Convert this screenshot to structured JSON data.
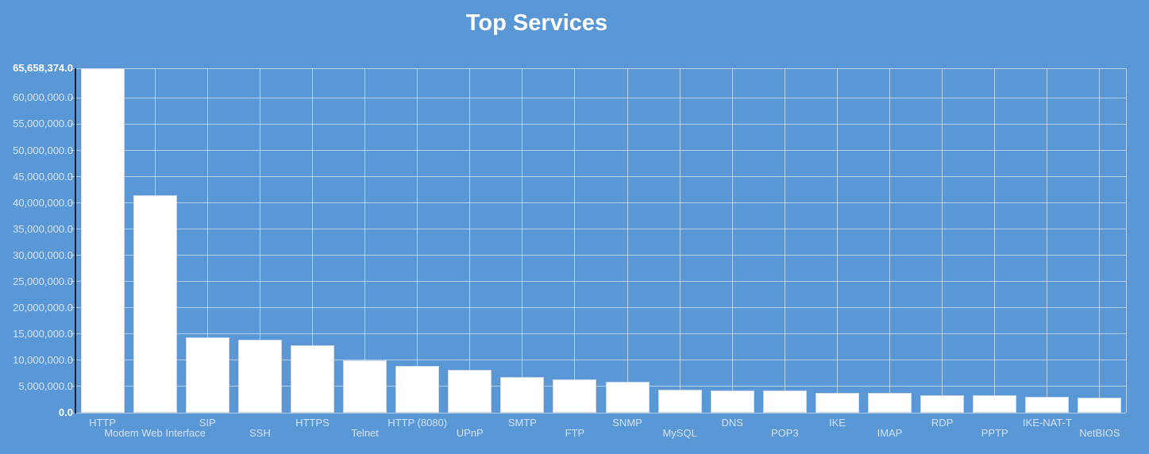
{
  "chart_data": {
    "type": "bar",
    "title": "Top Services",
    "xlabel": "",
    "ylabel": "",
    "grid": true,
    "legend": "none",
    "ylim": [
      0,
      65658374
    ],
    "categories": [
      "HTTP",
      "Modem Web Interface",
      "SIP",
      "SSH",
      "HTTPS",
      "Telnet",
      "HTTP (8080)",
      "UPnP",
      "SMTP",
      "FTP",
      "SNMP",
      "MySQL",
      "DNS",
      "POP3",
      "IKE",
      "IMAP",
      "RDP",
      "PPTP",
      "IKE-NAT-T",
      "NetBIOS"
    ],
    "values": [
      65658374,
      41400000,
      14440000,
      13890000,
      12820000,
      9970000,
      8900000,
      8190000,
      6880000,
      6360000,
      5900000,
      4330000,
      4280000,
      4250000,
      3830000,
      3720000,
      3370000,
      3310000,
      2960000,
      2910000
    ],
    "y_axis_ticks": [
      {
        "value": 0,
        "label": "0.0",
        "bold": true
      },
      {
        "value": 5000000,
        "label": "5,000,000.0",
        "bold": false
      },
      {
        "value": 10000000,
        "label": "10,000,000.0",
        "bold": false
      },
      {
        "value": 15000000,
        "label": "15,000,000.0",
        "bold": false
      },
      {
        "value": 20000000,
        "label": "20,000,000.0",
        "bold": false
      },
      {
        "value": 25000000,
        "label": "25,000,000.0",
        "bold": false
      },
      {
        "value": 30000000,
        "label": "30,000,000.0",
        "bold": false
      },
      {
        "value": 35000000,
        "label": "35,000,000.0",
        "bold": false
      },
      {
        "value": 40000000,
        "label": "40,000,000.0",
        "bold": false
      },
      {
        "value": 45000000,
        "label": "45,000,000.0",
        "bold": false
      },
      {
        "value": 50000000,
        "label": "50,000,000.0",
        "bold": false
      },
      {
        "value": 55000000,
        "label": "55,000,000.0",
        "bold": false
      },
      {
        "value": 60000000,
        "label": "60,000,000.0",
        "bold": false
      },
      {
        "value": 65658374,
        "label": "65,658,374.0",
        "bold": true
      }
    ],
    "colors": {
      "background": "#5997d6",
      "bar_fill": "#ffffff",
      "bar_border": "rgba(200,212,224,0.9)",
      "gridline": "rgba(255,255,255,0.55)",
      "axis_line": "#20202a",
      "tick_label": "#d9e6f6",
      "tick_label_bold": "#ffffff",
      "x_label": "#d5e3f4",
      "title": "#ffffff"
    }
  }
}
